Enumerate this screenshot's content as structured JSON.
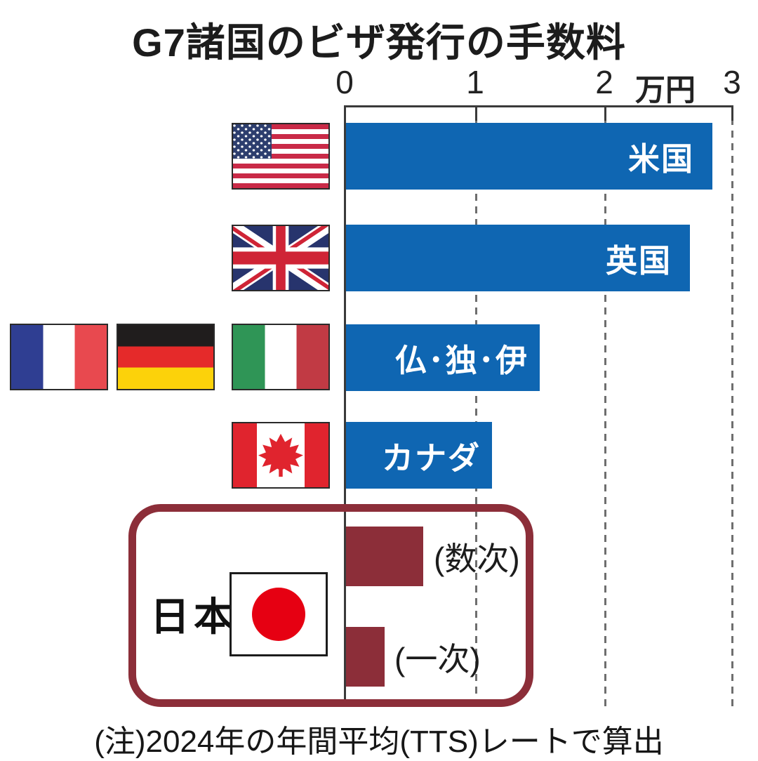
{
  "header": {
    "title": "G7諸国のビザ発行の手数料"
  },
  "axis": {
    "tick_labels": [
      "0",
      "1",
      "2",
      "3"
    ],
    "unit_label": "万円"
  },
  "rows": [
    {
      "label": "米国",
      "value": 2.84,
      "flag": "usa"
    },
    {
      "label": "英国",
      "value": 2.67,
      "flag": "uk"
    },
    {
      "label": "仏･独･伊",
      "value": 1.5,
      "flags": [
        "france",
        "germany",
        "italy"
      ]
    },
    {
      "label": "カナダ",
      "value": 1.13,
      "flag": "canada"
    }
  ],
  "japan": {
    "group_label": "日本",
    "flag": "japan",
    "bars": [
      {
        "label": "(数次)",
        "value": 0.6
      },
      {
        "label": "(一次)",
        "value": 0.3
      }
    ]
  },
  "footnote": "(注)2024年の年間平均(TTS)レートで算出",
  "icons": {
    "flags": [
      "usa-flag",
      "uk-flag",
      "france-flag",
      "germany-flag",
      "italy-flag",
      "canada-flag",
      "japan-flag"
    ]
  },
  "colors": {
    "bar_blue": "#0f66b2",
    "bar_maroon": "#8c2e39",
    "japan_box_border": "#8c2e39",
    "axis_line": "#3a3a3a",
    "gridline": "#6e6e6e",
    "japan_sun_red": "#e60012",
    "canada_red": "#e0242e"
  },
  "chart_data": {
    "type": "bar",
    "orientation": "horizontal",
    "title": "G7諸国のビザ発行の手数料",
    "xlabel_unit": "万円",
    "xlim": [
      0,
      3
    ],
    "x_ticks": [
      0,
      1,
      2,
      3
    ],
    "grid": "dashed-vertical",
    "categories": [
      "米国",
      "英国",
      "仏･独･伊",
      "カナダ",
      "日本(数次)",
      "日本(一次)"
    ],
    "values": [
      2.84,
      2.67,
      1.5,
      1.13,
      0.6,
      0.3
    ],
    "bar_colors": [
      "#0f66b2",
      "#0f66b2",
      "#0f66b2",
      "#0f66b2",
      "#8c2e39",
      "#8c2e39"
    ],
    "note": "(注)2024年の年間平均(TTS)レートで算出"
  }
}
